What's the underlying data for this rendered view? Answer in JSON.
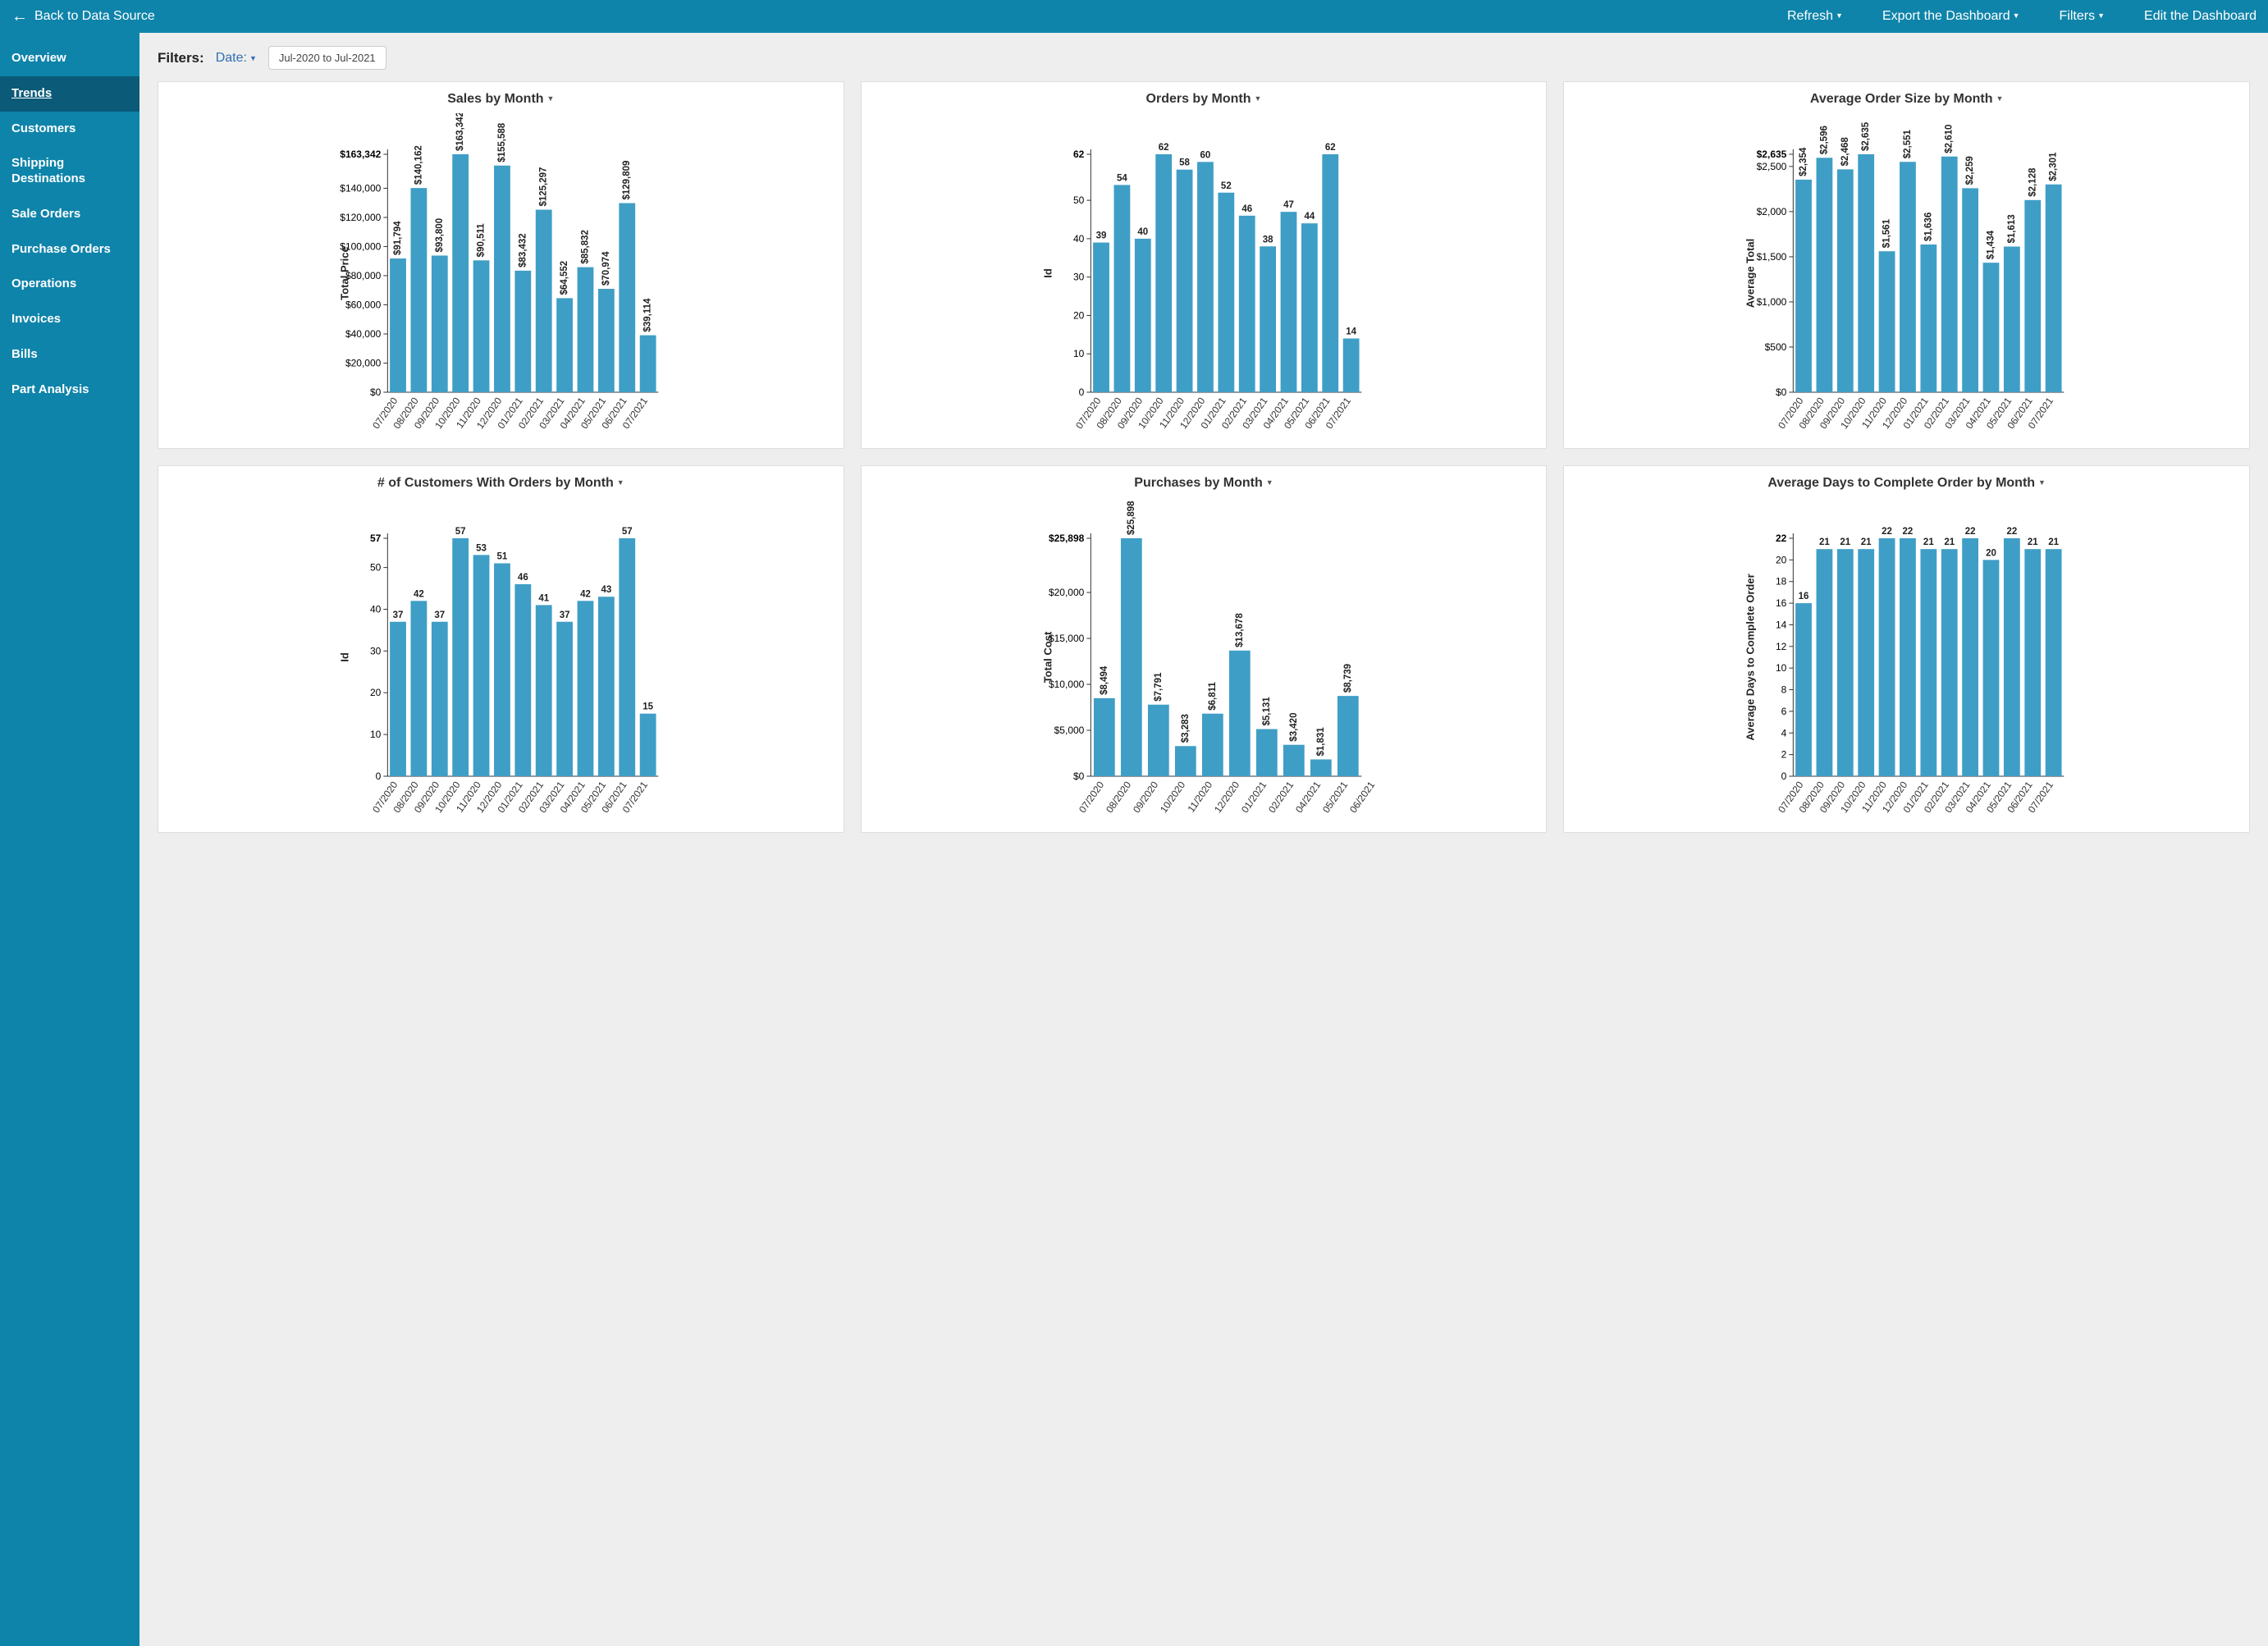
{
  "topbar": {
    "back_label": "Back to Data Source",
    "items": [
      {
        "label": "Refresh",
        "name": "refresh-menu"
      },
      {
        "label": "Export the Dashboard",
        "name": "export-menu"
      },
      {
        "label": "Filters",
        "name": "filters-menu"
      },
      {
        "label": "Edit the Dashboard",
        "name": "edit-dashboard"
      }
    ],
    "items_with_caret": [
      true,
      true,
      true,
      false
    ]
  },
  "sidebar": {
    "items": [
      {
        "label": "Overview",
        "name": "sidebar-item-overview"
      },
      {
        "label": "Trends",
        "name": "sidebar-item-trends",
        "active": true
      },
      {
        "label": "Customers",
        "name": "sidebar-item-customers"
      },
      {
        "label": "Shipping Destinations",
        "name": "sidebar-item-shipping-destinations"
      },
      {
        "label": "Sale Orders",
        "name": "sidebar-item-sale-orders"
      },
      {
        "label": "Purchase Orders",
        "name": "sidebar-item-purchase-orders"
      },
      {
        "label": "Operations",
        "name": "sidebar-item-operations"
      },
      {
        "label": "Invoices",
        "name": "sidebar-item-invoices"
      },
      {
        "label": "Bills",
        "name": "sidebar-item-bills"
      },
      {
        "label": "Part Analysis",
        "name": "sidebar-item-part-analysis"
      }
    ]
  },
  "filterbar": {
    "label": "Filters:",
    "date_label": "Date:",
    "range_text": "Jul-2020 to Jul-2021"
  },
  "colors": {
    "bar": "#3f9ec6",
    "axis": "#333333",
    "card_bg": "#ffffff",
    "page_bg": "#eeeeee",
    "brand": "#0f84aa",
    "brand_dark": "#0a5a78"
  },
  "months13": [
    "07/2020",
    "08/2020",
    "09/2020",
    "10/2020",
    "11/2020",
    "12/2020",
    "01/2021",
    "02/2021",
    "03/2021",
    "04/2021",
    "05/2021",
    "06/2021",
    "07/2021"
  ],
  "months_short": [
    "07/2020",
    "08/2020",
    "09/2020",
    "10/2020",
    "11/2020",
    "12/2020",
    "01/2021",
    "02/2021",
    "04/2021",
    "05/2021",
    "06/2021"
  ],
  "charts": [
    {
      "name": "sales-by-month",
      "title": "Sales by Month",
      "ylabel": "Total Price",
      "categories_key": "months13",
      "values": [
        91794,
        140162,
        93800,
        163342,
        90511,
        155588,
        83432,
        125297,
        64552,
        85832,
        70974,
        129809,
        39114
      ],
      "labels": [
        "$91,794",
        "$140,162",
        "$93,800",
        "$163,342",
        "$90,511",
        "$155,588",
        "$83,432",
        "$125,297",
        "$64,552",
        "$85,832",
        "$70,974",
        "$129,809",
        "$39,114"
      ],
      "ymax": 163342,
      "yticks": [
        0,
        20000,
        40000,
        60000,
        80000,
        100000,
        120000,
        140000,
        163342
      ],
      "ytick_labels": [
        "$0",
        "$20,000",
        "$40,000",
        "$60,000",
        "$80,000",
        "$100,000",
        "$120,000",
        "$140,000",
        "$163,342"
      ],
      "label_rotate": true
    },
    {
      "name": "orders-by-month",
      "title": "Orders by Month",
      "ylabel": "Id",
      "categories_key": "months13",
      "values": [
        39,
        54,
        40,
        62,
        58,
        60,
        52,
        46,
        38,
        47,
        44,
        62,
        14
      ],
      "labels": [
        "39",
        "54",
        "40",
        "62",
        "58",
        "60",
        "52",
        "46",
        "38",
        "47",
        "44",
        "62",
        "14"
      ],
      "ymax": 62,
      "yticks": [
        0,
        10,
        20,
        30,
        40,
        50,
        62
      ],
      "ytick_labels": [
        "0",
        "10",
        "20",
        "30",
        "40",
        "50",
        "62"
      ],
      "label_rotate": false
    },
    {
      "name": "avg-order-size-by-month",
      "title": "Average Order Size by Month",
      "ylabel": "Average Total",
      "categories_key": "months13",
      "values": [
        2354,
        2596,
        2468,
        2635,
        1561,
        2551,
        1636,
        2610,
        2259,
        1434,
        1613,
        2128,
        2301
      ],
      "labels": [
        "$2,354",
        "$2,596",
        "$2,468",
        "$2,635",
        "$1,561",
        "$2,551",
        "$1,636",
        "$2,610",
        "$2,259",
        "$1,434",
        "$1,613",
        "$2,128",
        "$2,301"
      ],
      "ymax": 2635,
      "yticks": [
        0,
        500,
        1000,
        1500,
        2000,
        2500,
        2635
      ],
      "ytick_labels": [
        "$0",
        "$500",
        "$1,000",
        "$1,500",
        "$2,000",
        "$2,500",
        "$2,635"
      ],
      "label_rotate": true
    },
    {
      "name": "customers-with-orders-by-month",
      "title": "# of Customers With Orders by Month",
      "ylabel": "Id",
      "categories_key": "months13",
      "values": [
        37,
        42,
        37,
        57,
        53,
        51,
        46,
        41,
        37,
        42,
        43,
        57,
        15
      ],
      "labels": [
        "37",
        "42",
        "37",
        "57",
        "53",
        "51",
        "46",
        "41",
        "37",
        "42",
        "43",
        "57",
        "15"
      ],
      "ymax": 57,
      "yticks": [
        0,
        10,
        20,
        30,
        40,
        50,
        57
      ],
      "ytick_labels": [
        "0",
        "10",
        "20",
        "30",
        "40",
        "50",
        "57"
      ],
      "label_rotate": false
    },
    {
      "name": "purchases-by-month",
      "title": "Purchases by Month",
      "ylabel": "Total Cost",
      "categories_key": "months_short",
      "values": [
        8494,
        25898,
        7791,
        3283,
        6811,
        13678,
        5131,
        3420,
        1831,
        8739,
        0
      ],
      "labels": [
        "$8,494",
        "$25,898",
        "$7,791",
        "$3,283",
        "$6,811",
        "$13,678",
        "$5,131",
        "$3,420",
        "$1,831",
        "$8,739",
        ""
      ],
      "ymax": 25898,
      "yticks": [
        0,
        5000,
        10000,
        15000,
        20000,
        25898
      ],
      "ytick_labels": [
        "$0",
        "$5,000",
        "$10,000",
        "$15,000",
        "$20,000",
        "$25,898"
      ],
      "label_rotate": true,
      "n_override": 10
    },
    {
      "name": "avg-days-to-complete",
      "title": "Average Days to Complete Order by Month",
      "ylabel": "Average Days to Complete Order",
      "categories_key": "months13",
      "values": [
        16,
        21,
        21,
        21,
        22,
        22,
        21,
        21,
        22,
        20,
        22,
        21,
        21
      ],
      "labels": [
        "16",
        "21",
        "21",
        "21",
        "22",
        "22",
        "21",
        "21",
        "22",
        "20",
        "22",
        "21",
        "21"
      ],
      "ymax": 22,
      "yticks": [
        0,
        2,
        4,
        6,
        8,
        10,
        12,
        14,
        16,
        18,
        20,
        22
      ],
      "ytick_labels": [
        "0",
        "2",
        "4",
        "6",
        "8",
        "10",
        "12",
        "14",
        "16",
        "18",
        "20",
        "22"
      ],
      "label_rotate": false
    }
  ]
}
